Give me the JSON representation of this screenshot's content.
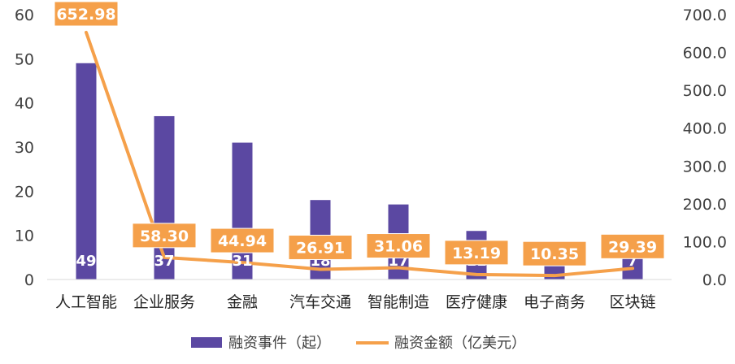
{
  "chart_data": {
    "type": "bar+line",
    "categories": [
      "人工智能",
      "企业服务",
      "金融",
      "汽车交通",
      "智能制造",
      "医疗健康",
      "电子商务",
      "区块链"
    ],
    "series": [
      {
        "name": "融资事件（起）",
        "type": "bar",
        "axis": "left",
        "values": [
          49,
          37,
          31,
          18,
          17,
          11,
          5,
          7
        ],
        "labels": [
          "49",
          "37",
          "31",
          "18",
          "17",
          "11",
          "5",
          "7"
        ]
      },
      {
        "name": "融资金额（亿美元）",
        "type": "line",
        "axis": "right",
        "values": [
          652.98,
          58.3,
          44.94,
          26.91,
          31.06,
          13.19,
          10.35,
          29.39
        ],
        "labels": [
          "652.98",
          "58.30",
          "44.94",
          "26.91",
          "31.06",
          "13.19",
          "10.35",
          "29.39"
        ]
      }
    ],
    "left_axis": {
      "ylim": [
        0,
        60
      ],
      "ticks": [
        "0",
        "10",
        "20",
        "30",
        "40",
        "50",
        "60"
      ]
    },
    "right_axis": {
      "ylim": [
        0,
        700
      ],
      "ticks": [
        "0.0",
        "100.0",
        "200.0",
        "300.0",
        "400.0",
        "500.0",
        "600.0",
        "700.0"
      ]
    },
    "legend_position": "bottom",
    "grid": false,
    "colors": {
      "bar": "#5B48A2",
      "line": "#F5A04A",
      "label_box": "#F5A04A"
    }
  }
}
